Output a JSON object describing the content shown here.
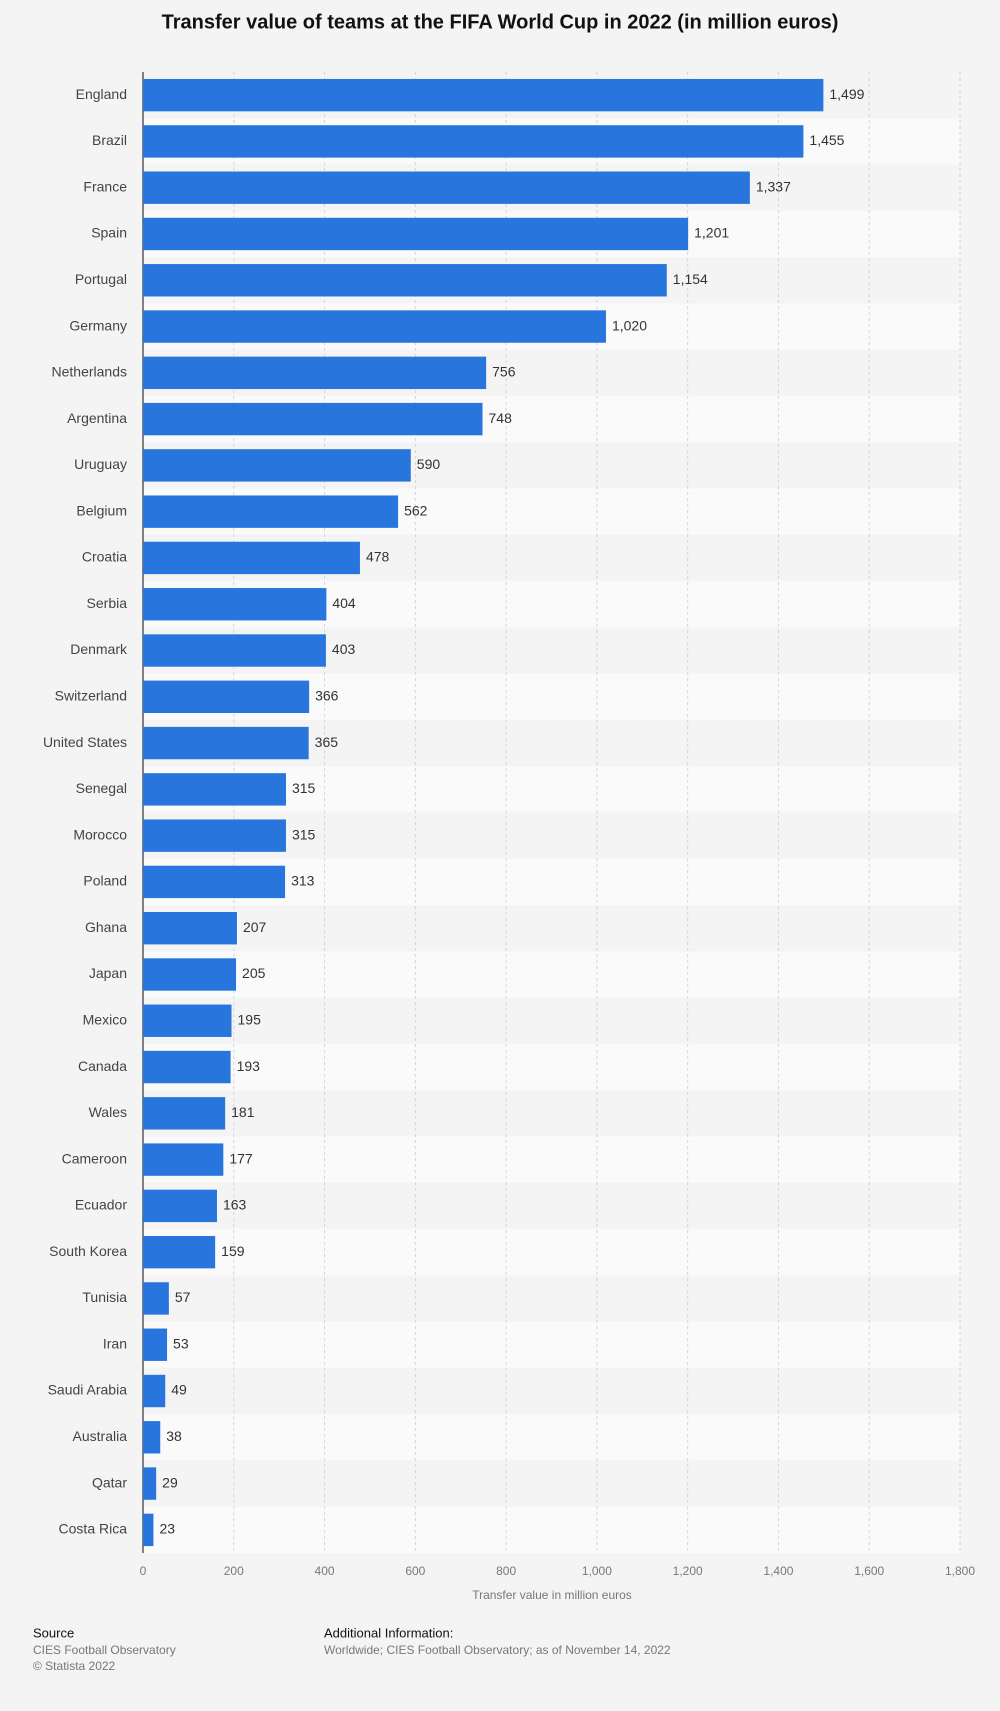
{
  "chart_data": {
    "type": "bar",
    "orientation": "horizontal",
    "title": "Transfer value of teams at the FIFA World Cup in 2022 (in million euros)",
    "x_label": "Transfer value in million euros",
    "categories": [
      "England",
      "Brazil",
      "France",
      "Spain",
      "Portugal",
      "Germany",
      "Netherlands",
      "Argentina",
      "Uruguay",
      "Belgium",
      "Croatia",
      "Serbia",
      "Denmark",
      "Switzerland",
      "United States",
      "Senegal",
      "Morocco",
      "Poland",
      "Ghana",
      "Japan",
      "Mexico",
      "Canada",
      "Wales",
      "Cameroon",
      "Ecuador",
      "South Korea",
      "Tunisia",
      "Iran",
      "Saudi Arabia",
      "Australia",
      "Qatar",
      "Costa Rica"
    ],
    "values": [
      1499,
      1455,
      1337,
      1201,
      1154,
      1020,
      756,
      748,
      590,
      562,
      478,
      404,
      403,
      366,
      365,
      315,
      315,
      313,
      207,
      205,
      195,
      193,
      181,
      177,
      163,
      159,
      57,
      53,
      49,
      38,
      29,
      23
    ],
    "value_labels": [
      "1,499",
      "1,455",
      "1,337",
      "1,201",
      "1,154",
      "1,020",
      "756",
      "748",
      "590",
      "562",
      "478",
      "404",
      "403",
      "366",
      "365",
      "315",
      "315",
      "313",
      "207",
      "205",
      "195",
      "193",
      "181",
      "177",
      "163",
      "159",
      "57",
      "53",
      "49",
      "38",
      "29",
      "23"
    ],
    "color": "#2876dd",
    "xlim": [
      0,
      1800
    ],
    "xticks": [
      0,
      200,
      400,
      600,
      800,
      {
        "value": 1000,
        "label": "1,000"
      },
      {
        "value": 1200,
        "label": "1,200"
      },
      {
        "value": 1400,
        "label": "1,400"
      },
      {
        "value": 1600,
        "label": "1,600"
      },
      {
        "value": 1800,
        "label": "1,800"
      }
    ],
    "grid": true,
    "source_heading": "Source",
    "source_lines": [
      "CIES Football Observatory",
      "© Statista 2022"
    ],
    "info_heading": "Additional Information:",
    "info_text": "Worldwide; CIES Football Observatory; as of November 14, 2022"
  }
}
